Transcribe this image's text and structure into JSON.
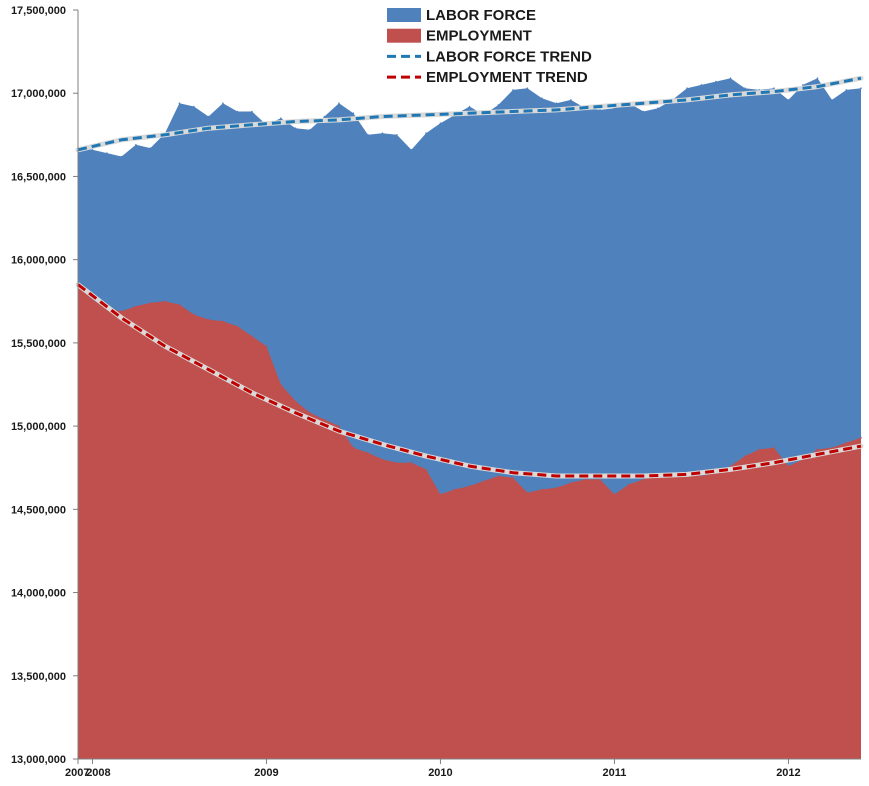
{
  "chart_data": {
    "type": "area",
    "xlim": [
      2007.917,
      2012.417
    ],
    "ylim": [
      13000000,
      17500000
    ],
    "y_ticks": [
      {
        "value": 13000000,
        "label": "13,000,000"
      },
      {
        "value": 13500000,
        "label": "13,500,000"
      },
      {
        "value": 14000000,
        "label": "14,000,000"
      },
      {
        "value": 14500000,
        "label": "14,500,000"
      },
      {
        "value": 15000000,
        "label": "15,000,000"
      },
      {
        "value": 15500000,
        "label": "15,500,000"
      },
      {
        "value": 16000000,
        "label": "16,000,000"
      },
      {
        "value": 16500000,
        "label": "16,500,000"
      },
      {
        "value": 17000000,
        "label": "17,000,000"
      },
      {
        "value": 17500000,
        "label": "17,500,000"
      }
    ],
    "x_ticks": [
      {
        "value": 2007.917,
        "label": "2007"
      },
      {
        "value": 2008.0,
        "label": "2008"
      },
      {
        "value": 2009.0,
        "label": "2009"
      },
      {
        "value": 2010.0,
        "label": "2010"
      },
      {
        "value": 2011.0,
        "label": "2011"
      },
      {
        "value": 2012.0,
        "label": "2012"
      }
    ],
    "legend_position": "top-center",
    "grid": false,
    "series": [
      {
        "name": "LABOR FORCE",
        "kind": "area",
        "color": "#4f81bd",
        "x": [
          2007.917,
          2008.0,
          2008.083,
          2008.167,
          2008.25,
          2008.333,
          2008.417,
          2008.5,
          2008.583,
          2008.667,
          2008.75,
          2008.833,
          2008.917,
          2009.0,
          2009.083,
          2009.167,
          2009.25,
          2009.333,
          2009.417,
          2009.5,
          2009.583,
          2009.667,
          2009.75,
          2009.833,
          2009.917,
          2010.0,
          2010.083,
          2010.167,
          2010.25,
          2010.333,
          2010.417,
          2010.5,
          2010.583,
          2010.667,
          2010.75,
          2010.833,
          2010.917,
          2011.0,
          2011.083,
          2011.167,
          2011.25,
          2011.333,
          2011.417,
          2011.5,
          2011.583,
          2011.667,
          2011.75,
          2011.833,
          2011.917,
          2012.0,
          2012.083,
          2012.167,
          2012.25,
          2012.333,
          2012.417
        ],
        "values": [
          16670000,
          16660000,
          16640000,
          16620000,
          16690000,
          16670000,
          16760000,
          16940000,
          16920000,
          16860000,
          16940000,
          16890000,
          16890000,
          16810000,
          16850000,
          16790000,
          16780000,
          16860000,
          16940000,
          16880000,
          16750000,
          16760000,
          16750000,
          16660000,
          16760000,
          16820000,
          16870000,
          16920000,
          16870000,
          16930000,
          17020000,
          17030000,
          16970000,
          16940000,
          16960000,
          16910000,
          16900000,
          16910000,
          16940000,
          16890000,
          16910000,
          16960000,
          17030000,
          17050000,
          17070000,
          17090000,
          17030000,
          17020000,
          17030000,
          16960000,
          17050000,
          17090000,
          16960000,
          17020000,
          17030000
        ]
      },
      {
        "name": "EMPLOYMENT",
        "kind": "area",
        "color": "#c0504d",
        "x": [
          2007.917,
          2008.0,
          2008.083,
          2008.167,
          2008.25,
          2008.333,
          2008.417,
          2008.5,
          2008.583,
          2008.667,
          2008.75,
          2008.833,
          2008.917,
          2009.0,
          2009.083,
          2009.167,
          2009.25,
          2009.333,
          2009.417,
          2009.5,
          2009.583,
          2009.667,
          2009.75,
          2009.833,
          2009.917,
          2010.0,
          2010.083,
          2010.167,
          2010.25,
          2010.333,
          2010.417,
          2010.5,
          2010.583,
          2010.667,
          2010.75,
          2010.833,
          2010.917,
          2011.0,
          2011.083,
          2011.167,
          2011.25,
          2011.333,
          2011.417,
          2011.5,
          2011.583,
          2011.667,
          2011.75,
          2011.833,
          2011.917,
          2012.0,
          2012.083,
          2012.167,
          2012.25,
          2012.333,
          2012.417
        ],
        "values": [
          15840000,
          15760000,
          15710000,
          15690000,
          15720000,
          15740000,
          15750000,
          15730000,
          15670000,
          15640000,
          15630000,
          15600000,
          15540000,
          15480000,
          15250000,
          15150000,
          15080000,
          15040000,
          15000000,
          14870000,
          14840000,
          14800000,
          14780000,
          14780000,
          14740000,
          14590000,
          14620000,
          14640000,
          14670000,
          14700000,
          14690000,
          14600000,
          14620000,
          14630000,
          14660000,
          14680000,
          14680000,
          14590000,
          14650000,
          14680000,
          14700000,
          14700000,
          14720000,
          14700000,
          14720000,
          14760000,
          14820000,
          14860000,
          14870000,
          14760000,
          14800000,
          14860000,
          14870000,
          14900000,
          14930000
        ]
      },
      {
        "name": "LABOR FORCE TREND",
        "kind": "trend",
        "color": "#1f77b4",
        "x": [
          2007.917,
          2008.167,
          2008.417,
          2008.667,
          2008.917,
          2009.167,
          2009.417,
          2009.667,
          2009.917,
          2010.167,
          2010.417,
          2010.667,
          2010.917,
          2011.167,
          2011.417,
          2011.667,
          2011.917,
          2012.167,
          2012.417
        ],
        "values": [
          16660000,
          16720000,
          16750000,
          16790000,
          16810000,
          16830000,
          16840000,
          16860000,
          16870000,
          16880000,
          16890000,
          16900000,
          16920000,
          16940000,
          16960000,
          16990000,
          17010000,
          17040000,
          17090000
        ]
      },
      {
        "name": "EMPLOYMENT TREND",
        "kind": "trend",
        "color": "#c00000",
        "x": [
          2007.917,
          2008.167,
          2008.417,
          2008.667,
          2008.917,
          2009.167,
          2009.417,
          2009.667,
          2009.917,
          2010.167,
          2010.417,
          2010.667,
          2010.917,
          2011.167,
          2011.417,
          2011.667,
          2011.917,
          2012.167,
          2012.417
        ],
        "values": [
          15850000,
          15650000,
          15480000,
          15340000,
          15200000,
          15080000,
          14970000,
          14890000,
          14820000,
          14760000,
          14720000,
          14700000,
          14700000,
          14700000,
          14710000,
          14740000,
          14780000,
          14830000,
          14880000
        ]
      }
    ]
  }
}
